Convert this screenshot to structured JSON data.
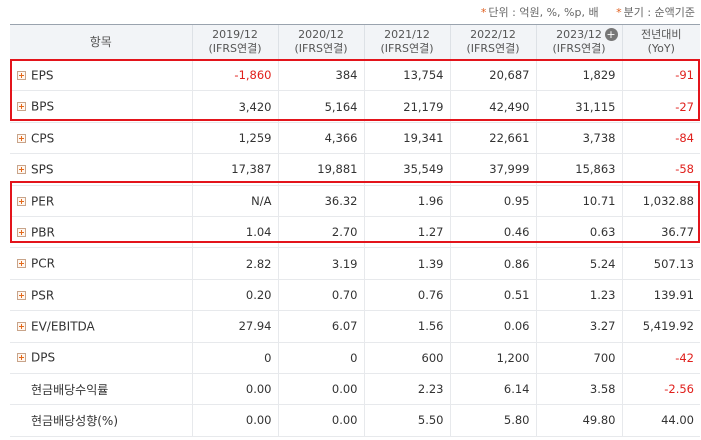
{
  "notes": {
    "unit": "단위 : 억원, %, %p, 배",
    "period": "분기 : 순액기준"
  },
  "header": {
    "item": "항목",
    "columns": [
      {
        "line1": "2019/12",
        "line2": "(IFRS연결)"
      },
      {
        "line1": "2020/12",
        "line2": "(IFRS연결)"
      },
      {
        "line1": "2021/12",
        "line2": "(IFRS연결)"
      },
      {
        "line1": "2022/12",
        "line2": "(IFRS연결)"
      },
      {
        "line1": "2023/12",
        "line2": "(IFRS연결)"
      },
      {
        "line1": "전년대비",
        "line2": "(YoY)"
      }
    ]
  },
  "rows": [
    {
      "name": "EPS",
      "values": [
        "-1,860",
        "384",
        "13,754",
        "20,687",
        "1,829",
        "-91"
      ]
    },
    {
      "name": "BPS",
      "values": [
        "3,420",
        "5,164",
        "21,179",
        "42,490",
        "31,115",
        "-27"
      ]
    },
    {
      "name": "CPS",
      "values": [
        "1,259",
        "4,366",
        "19,341",
        "22,661",
        "3,738",
        "-84"
      ]
    },
    {
      "name": "SPS",
      "values": [
        "17,387",
        "19,881",
        "35,549",
        "37,999",
        "15,863",
        "-58"
      ]
    },
    {
      "name": "PER",
      "values": [
        "N/A",
        "36.32",
        "1.96",
        "0.95",
        "10.71",
        "1,032.88"
      ]
    },
    {
      "name": "PBR",
      "values": [
        "1.04",
        "2.70",
        "1.27",
        "0.46",
        "0.63",
        "36.77"
      ]
    },
    {
      "name": "PCR",
      "values": [
        "2.82",
        "3.19",
        "1.39",
        "0.86",
        "5.24",
        "507.13"
      ]
    },
    {
      "name": "PSR",
      "values": [
        "0.20",
        "0.70",
        "0.76",
        "0.51",
        "1.23",
        "139.91"
      ]
    },
    {
      "name": "EV/EBITDA",
      "values": [
        "27.94",
        "6.07",
        "1.56",
        "0.06",
        "3.27",
        "5,419.92"
      ]
    },
    {
      "name": "DPS",
      "values": [
        "0",
        "0",
        "600",
        "1,200",
        "700",
        "-42"
      ]
    },
    {
      "name": "현금배당수익률",
      "values": [
        "0.00",
        "0.00",
        "2.23",
        "6.14",
        "3.58",
        "-2.56"
      ]
    },
    {
      "name": "현금배당성향(%)",
      "values": [
        "0.00",
        "0.00",
        "5.50",
        "5.80",
        "49.80",
        "44.00"
      ]
    }
  ]
}
